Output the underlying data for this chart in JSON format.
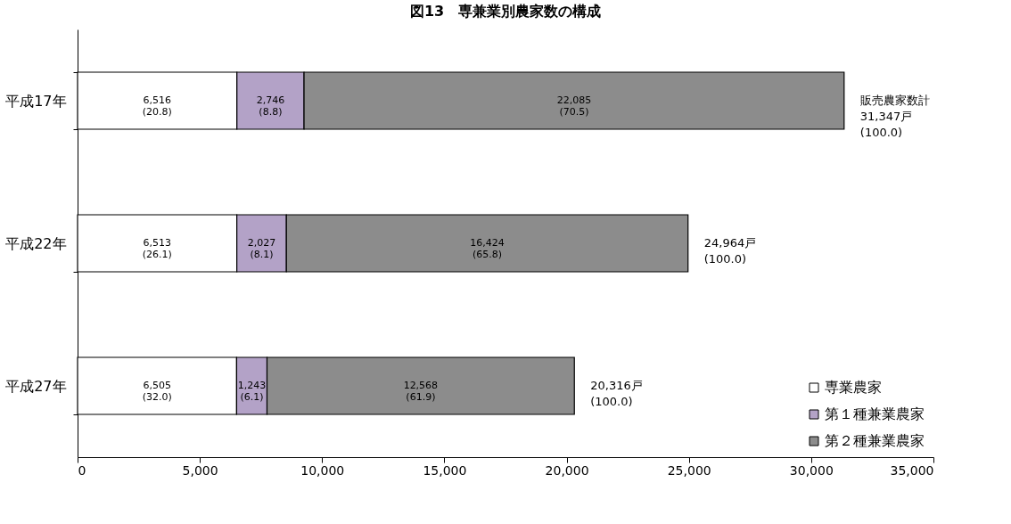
{
  "chart_data": {
    "type": "bar",
    "orientation": "horizontal",
    "stacked": true,
    "title": "図13　専兼業別農家数の構成",
    "categories": [
      "平成17年",
      "平成22年",
      "平成27年"
    ],
    "series": [
      {
        "name": "専業農家",
        "color": "#ffffff",
        "values": [
          6516,
          6513,
          6505
        ],
        "value_labels": [
          "6,516\n(20.8)",
          "6,513\n(26.1)",
          "6,505\n(32.0)"
        ]
      },
      {
        "name": "第１種兼業農家",
        "color": "#b3a2c7",
        "values": [
          2746,
          2027,
          1243
        ],
        "value_labels": [
          "2,746\n(8.8)",
          "2,027\n(8.1)",
          "1,243\n(6.1)"
        ]
      },
      {
        "name": "第２種兼業農家",
        "color": "#8c8c8c",
        "values": [
          22085,
          16424,
          12568
        ],
        "value_labels": [
          "22,085\n(70.5)",
          "16,424\n(65.8)",
          "12,568\n(61.9)"
        ]
      }
    ],
    "totals": [
      "販売農家数計\n31,347戸\n(100.0)",
      "24,964戸\n(100.0)",
      "20,316戸\n(100.0)"
    ],
    "xlim": [
      0,
      35000
    ],
    "xticks": [
      0,
      {
        "value": 5000,
        "label": "5,000"
      },
      {
        "value": 10000,
        "label": "10,000"
      },
      {
        "value": 15000,
        "label": "15,000"
      },
      {
        "value": 20000,
        "label": "20,000"
      },
      {
        "value": 25000,
        "label": "25,000"
      },
      {
        "value": 30000,
        "label": "30,000"
      },
      {
        "value": 35000,
        "label": "35,000"
      }
    ],
    "grid": false,
    "legend": "bottom right"
  }
}
